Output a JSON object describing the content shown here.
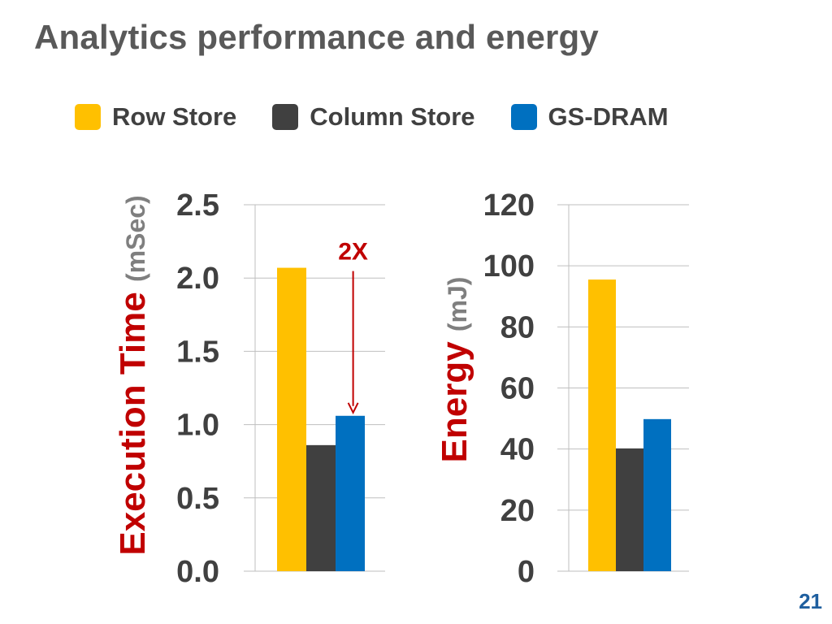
{
  "slide": {
    "title": "Analytics performance and energy",
    "page_number": "21"
  },
  "legend": [
    {
      "label": "Row Store",
      "color": "#FFC000"
    },
    {
      "label": "Column Store",
      "color": "#404040"
    },
    {
      "label": "GS-DRAM",
      "color": "#0070C0"
    }
  ],
  "colors": {
    "axis_title": "#C00000",
    "axis_unit": "#7F7F7F",
    "tick_label": "#404040",
    "annotation": "#C00000",
    "gridline": "#BFBFBF"
  },
  "chart_data": [
    {
      "type": "bar",
      "ylabel": "Execution Time",
      "yunit": "(mSec)",
      "ylim": [
        0,
        2.5
      ],
      "yticks": [
        "0.0",
        "0.5",
        "1.0",
        "1.5",
        "2.0",
        "2.5"
      ],
      "grid": true,
      "series": [
        {
          "name": "Row Store",
          "values": [
            2.07
          ]
        },
        {
          "name": "Column Store",
          "values": [
            0.86
          ]
        },
        {
          "name": "GS-DRAM",
          "values": [
            1.06
          ]
        }
      ],
      "annotations": [
        {
          "text": "2X",
          "from_series": "Row Store",
          "to_series": "GS-DRAM"
        }
      ]
    },
    {
      "type": "bar",
      "ylabel": "Energy",
      "yunit": "(mJ)",
      "ylim": [
        0,
        120
      ],
      "yticks": [
        "0",
        "20",
        "40",
        "60",
        "80",
        "100",
        "120"
      ],
      "grid": true,
      "series": [
        {
          "name": "Row Store",
          "values": [
            95.5
          ]
        },
        {
          "name": "Column Store",
          "values": [
            40.2
          ]
        },
        {
          "name": "GS-DRAM",
          "values": [
            49.8
          ]
        }
      ]
    }
  ]
}
